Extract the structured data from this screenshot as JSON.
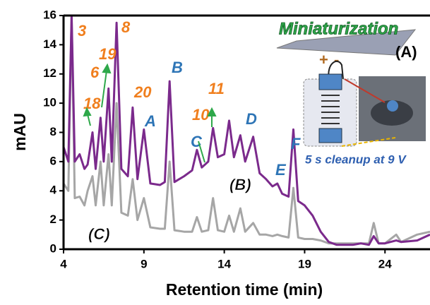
{
  "chart_data": {
    "type": "line",
    "x_label": "Retention time (min)",
    "y_label": "mAU",
    "x": [
      4.0,
      4.3,
      4.5,
      4.7,
      5.0,
      5.3,
      5.5,
      5.8,
      6.0,
      6.3,
      6.5,
      6.8,
      7.0,
      7.3,
      7.6,
      8.0,
      8.3,
      8.6,
      9.0,
      9.4,
      10.0,
      10.3,
      10.6,
      10.9,
      11.5,
      12.0,
      12.3,
      12.6,
      13.0,
      13.3,
      13.6,
      14.0,
      14.3,
      14.6,
      15.0,
      15.3,
      15.8,
      16.2,
      16.6,
      17.0,
      17.3,
      17.6,
      18.0,
      18.3,
      18.6,
      19.0,
      19.5,
      20.0,
      20.5,
      21.0,
      22.0,
      22.5,
      23.0,
      23.3,
      23.6,
      24.0,
      24.7,
      25.0,
      26.0,
      26.8
    ],
    "series": [
      {
        "color": "#7b2a8c",
        "values": [
          7,
          6,
          16,
          6,
          6.5,
          5.5,
          5.8,
          8,
          5.5,
          9,
          6,
          11,
          6,
          15.5,
          5.5,
          5,
          9.7,
          4.8,
          8.2,
          4.5,
          4.4,
          4.6,
          11.5,
          4.6,
          5.0,
          5.4,
          6.8,
          5.6,
          6.0,
          8.3,
          6.3,
          6.5,
          8.8,
          6.3,
          7.8,
          6.0,
          7.7,
          5.2,
          4.8,
          4.3,
          4.5,
          3.8,
          3.6,
          8.2,
          3.3,
          3.0,
          2.3,
          1.2,
          0.5,
          0.3,
          0.3,
          0.4,
          0.3,
          0.9,
          0.4,
          0.4,
          0.6,
          0.5,
          0.6,
          1.0
        ]
      },
      {
        "color": "#a6a6a6",
        "values": [
          4.5,
          4,
          16,
          3.5,
          3.6,
          3.0,
          4.0,
          5,
          3,
          6,
          3,
          6.5,
          3,
          10,
          2.5,
          2.3,
          4.8,
          2,
          3.5,
          1.5,
          1.4,
          1.4,
          6,
          1.3,
          1.2,
          1.2,
          2.2,
          1.2,
          1.3,
          3.5,
          1.3,
          1.2,
          2.3,
          1.2,
          2.8,
          1.2,
          1.8,
          1.0,
          1.0,
          0.9,
          1.0,
          0.9,
          0.8,
          4.2,
          0.8,
          0.7,
          0.7,
          0.6,
          0.4,
          0.4,
          0.4,
          0.4,
          0.4,
          1.8,
          0.4,
          0.4,
          1.0,
          0.5,
          1.0,
          1.2
        ]
      }
    ],
    "xlim": [
      4,
      26.8
    ],
    "xticks": [
      4,
      9,
      14,
      19,
      24
    ],
    "ylim": [
      0,
      16
    ],
    "yticks": [
      0,
      2,
      4,
      6,
      8,
      10,
      12,
      14,
      16
    ],
    "annotations": [
      "3",
      "8",
      "19",
      "6",
      "18",
      "20",
      "A",
      "B",
      "C",
      "10",
      "11",
      "D",
      "E",
      "F",
      "(B)",
      "(C)"
    ],
    "inset": {
      "title": "Miniaturization",
      "label": "(A)",
      "plus": "+",
      "minus": "-",
      "caption": "5 s cleanup at 9 V"
    }
  }
}
